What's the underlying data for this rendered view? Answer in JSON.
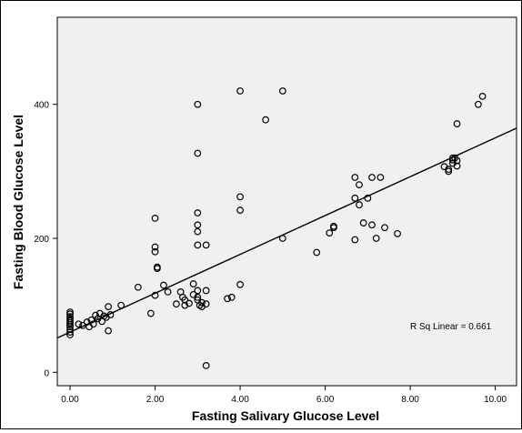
{
  "chart_data": {
    "type": "scatter",
    "xlabel": "Fasting Salivary Glucose Level",
    "ylabel": "Fasting Blood Glucose Level",
    "xlim": [
      -0.3,
      10.5
    ],
    "ylim": [
      -20,
      530
    ],
    "x_ticks": [
      0,
      2,
      4,
      6,
      8,
      10
    ],
    "x_tick_labels": [
      "0.00",
      "2.00",
      "4.00",
      "6.00",
      "8.00",
      "10.00"
    ],
    "y_ticks": [
      0,
      200,
      400
    ],
    "y_tick_labels": [
      "0",
      "200",
      "400"
    ],
    "grid": false,
    "fit_line": {
      "intercept": 60,
      "slope": 29,
      "label": "R Sq Linear = 0.661"
    },
    "colors": {
      "plot_background": "#f0f0f0",
      "points": "#000000",
      "line": "#000000"
    },
    "points": [
      [
        0,
        90
      ],
      [
        0,
        87
      ],
      [
        0,
        83
      ],
      [
        0,
        80
      ],
      [
        0,
        77
      ],
      [
        0,
        74
      ],
      [
        0,
        71
      ],
      [
        0,
        68
      ],
      [
        0,
        64
      ],
      [
        0,
        60
      ],
      [
        0,
        56
      ],
      [
        0.2,
        72
      ],
      [
        0.3,
        70
      ],
      [
        0.4,
        75
      ],
      [
        0.45,
        68
      ],
      [
        0.5,
        78
      ],
      [
        0.55,
        72
      ],
      [
        0.6,
        85
      ],
      [
        0.65,
        80
      ],
      [
        0.7,
        88
      ],
      [
        0.75,
        76
      ],
      [
        0.8,
        84
      ],
      [
        0.85,
        82
      ],
      [
        0.9,
        98
      ],
      [
        0.9,
        62
      ],
      [
        0.95,
        86
      ],
      [
        1.2,
        100
      ],
      [
        1.6,
        127
      ],
      [
        1.9,
        88
      ],
      [
        2.0,
        230
      ],
      [
        2.0,
        187
      ],
      [
        2.0,
        180
      ],
      [
        2.05,
        157
      ],
      [
        2.05,
        155
      ],
      [
        2.0,
        115
      ],
      [
        2.2,
        130
      ],
      [
        2.3,
        120
      ],
      [
        2.5,
        102
      ],
      [
        2.6,
        120
      ],
      [
        2.65,
        112
      ],
      [
        2.7,
        108
      ],
      [
        2.7,
        100
      ],
      [
        2.8,
        103
      ],
      [
        2.9,
        132
      ],
      [
        2.9,
        116
      ],
      [
        3.0,
        400
      ],
      [
        3.0,
        327
      ],
      [
        3.0,
        238
      ],
      [
        3.0,
        220
      ],
      [
        3.0,
        210
      ],
      [
        3.0,
        190
      ],
      [
        3.0,
        122
      ],
      [
        3.0,
        112
      ],
      [
        3.0,
        108
      ],
      [
        3.05,
        100
      ],
      [
        3.1,
        98
      ],
      [
        3.1,
        104
      ],
      [
        3.2,
        190
      ],
      [
        3.2,
        122
      ],
      [
        3.2,
        102
      ],
      [
        3.2,
        10
      ],
      [
        3.7,
        110
      ],
      [
        3.8,
        112
      ],
      [
        4.0,
        420
      ],
      [
        4.0,
        262
      ],
      [
        4.0,
        242
      ],
      [
        4.0,
        131
      ],
      [
        4.6,
        377
      ],
      [
        5.0,
        420
      ],
      [
        5.0,
        200
      ],
      [
        5.8,
        179
      ],
      [
        6.1,
        208
      ],
      [
        6.2,
        218
      ],
      [
        6.2,
        216
      ],
      [
        6.7,
        291
      ],
      [
        6.7,
        260
      ],
      [
        6.7,
        198
      ],
      [
        6.8,
        280
      ],
      [
        6.8,
        250
      ],
      [
        6.9,
        223
      ],
      [
        7.0,
        260
      ],
      [
        7.1,
        291
      ],
      [
        7.1,
        220
      ],
      [
        7.2,
        200
      ],
      [
        7.3,
        291
      ],
      [
        7.4,
        216
      ],
      [
        7.7,
        207
      ],
      [
        8.8,
        307
      ],
      [
        8.9,
        303
      ],
      [
        8.9,
        300
      ],
      [
        9.0,
        320
      ],
      [
        9.0,
        317
      ],
      [
        9.0,
        312
      ],
      [
        9.05,
        320
      ],
      [
        9.1,
        308
      ],
      [
        9.1,
        316
      ],
      [
        9.1,
        371
      ],
      [
        9.6,
        400
      ],
      [
        9.7,
        412
      ]
    ]
  }
}
